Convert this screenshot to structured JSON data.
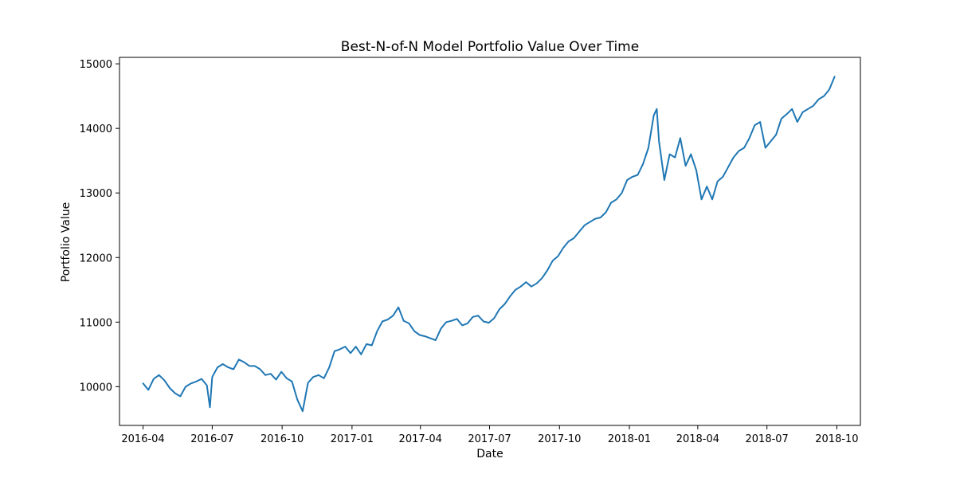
{
  "chart_data": {
    "type": "line",
    "title": "Best-N-of-N Model Portfolio Value Over Time",
    "xlabel": "Date",
    "ylabel": "Portfolio Value",
    "grid": false,
    "line_color": "#1f77b4",
    "xlim": [
      "2016-03-01",
      "2018-11-01"
    ],
    "ylim": [
      9400,
      15100
    ],
    "x_ticks": [
      "2016-04",
      "2016-07",
      "2016-10",
      "2017-01",
      "2017-04",
      "2017-07",
      "2017-10",
      "2018-01",
      "2018-04",
      "2018-07",
      "2018-10"
    ],
    "y_ticks": [
      10000,
      11000,
      12000,
      13000,
      14000,
      15000
    ],
    "series": [
      {
        "x": [
          "2016-04-01",
          "2016-04-08",
          "2016-04-15",
          "2016-04-22",
          "2016-04-29",
          "2016-05-06",
          "2016-05-13",
          "2016-05-20",
          "2016-05-27",
          "2016-06-03",
          "2016-06-10",
          "2016-06-17",
          "2016-06-24",
          "2016-06-28",
          "2016-07-01",
          "2016-07-08",
          "2016-07-15",
          "2016-07-22",
          "2016-07-29",
          "2016-08-05",
          "2016-08-12",
          "2016-08-19",
          "2016-08-26",
          "2016-09-02",
          "2016-09-09",
          "2016-09-16",
          "2016-09-23",
          "2016-09-30",
          "2016-10-07",
          "2016-10-14",
          "2016-10-21",
          "2016-10-28",
          "2016-11-04",
          "2016-11-11",
          "2016-11-18",
          "2016-11-25",
          "2016-12-02",
          "2016-12-09",
          "2016-12-16",
          "2016-12-23",
          "2016-12-30",
          "2017-01-06",
          "2017-01-13",
          "2017-01-20",
          "2017-01-27",
          "2017-02-03",
          "2017-02-10",
          "2017-02-17",
          "2017-02-24",
          "2017-03-03",
          "2017-03-10",
          "2017-03-17",
          "2017-03-24",
          "2017-03-31",
          "2017-04-07",
          "2017-04-14",
          "2017-04-21",
          "2017-04-28",
          "2017-05-05",
          "2017-05-12",
          "2017-05-19",
          "2017-05-26",
          "2017-06-02",
          "2017-06-09",
          "2017-06-16",
          "2017-06-23",
          "2017-06-30",
          "2017-07-07",
          "2017-07-14",
          "2017-07-21",
          "2017-07-28",
          "2017-08-04",
          "2017-08-11",
          "2017-08-18",
          "2017-08-25",
          "2017-09-01",
          "2017-09-08",
          "2017-09-15",
          "2017-09-22",
          "2017-09-29",
          "2017-10-06",
          "2017-10-13",
          "2017-10-20",
          "2017-10-27",
          "2017-11-03",
          "2017-11-10",
          "2017-11-17",
          "2017-11-24",
          "2017-12-01",
          "2017-12-08",
          "2017-12-15",
          "2017-12-22",
          "2017-12-29",
          "2018-01-05",
          "2018-01-12",
          "2018-01-19",
          "2018-01-26",
          "2018-02-02",
          "2018-02-06",
          "2018-02-09",
          "2018-02-16",
          "2018-02-23",
          "2018-03-02",
          "2018-03-09",
          "2018-03-16",
          "2018-03-23",
          "2018-03-30",
          "2018-04-06",
          "2018-04-13",
          "2018-04-20",
          "2018-04-27",
          "2018-05-04",
          "2018-05-11",
          "2018-05-18",
          "2018-05-25",
          "2018-06-01",
          "2018-06-08",
          "2018-06-15",
          "2018-06-22",
          "2018-06-29",
          "2018-07-06",
          "2018-07-13",
          "2018-07-20",
          "2018-07-27",
          "2018-08-03",
          "2018-08-10",
          "2018-08-17",
          "2018-08-24",
          "2018-08-31",
          "2018-09-07",
          "2018-09-14",
          "2018-09-21",
          "2018-09-28"
        ],
        "values": [
          10050,
          9950,
          10120,
          10180,
          10100,
          9980,
          9900,
          9850,
          10000,
          10050,
          10080,
          10120,
          10020,
          9680,
          10150,
          10300,
          10350,
          10300,
          10270,
          10420,
          10380,
          10320,
          10320,
          10270,
          10180,
          10200,
          10110,
          10230,
          10130,
          10080,
          9800,
          9620,
          10060,
          10150,
          10180,
          10130,
          10300,
          10550,
          10580,
          10620,
          10520,
          10620,
          10500,
          10660,
          10640,
          10860,
          11010,
          11040,
          11100,
          11230,
          11020,
          10980,
          10860,
          10800,
          10780,
          10750,
          10720,
          10900,
          11000,
          11020,
          11050,
          10950,
          10980,
          11080,
          11100,
          11010,
          10990,
          11060,
          11200,
          11280,
          11400,
          11500,
          11550,
          11620,
          11550,
          11600,
          11680,
          11800,
          11950,
          12020,
          12150,
          12250,
          12300,
          12400,
          12500,
          12550,
          12600,
          12620,
          12700,
          12850,
          12900,
          13000,
          13200,
          13250,
          13280,
          13450,
          13700,
          14200,
          14300,
          13800,
          13200,
          13600,
          13550,
          13850,
          13420,
          13600,
          13350,
          12900,
          13100,
          12900,
          13180,
          13250,
          13400,
          13550,
          13650,
          13700,
          13850,
          14050,
          14100,
          13700,
          13800,
          13900,
          14150,
          14220,
          14300,
          14100,
          14250,
          14300,
          14350,
          14450,
          14500,
          14600,
          14800
        ]
      }
    ]
  }
}
